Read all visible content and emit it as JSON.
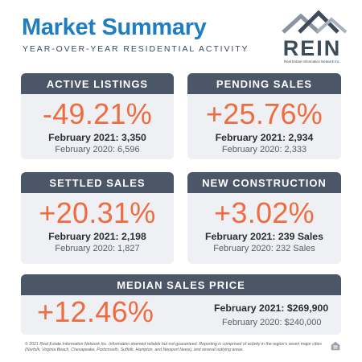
{
  "header": {
    "title": "Market Summary",
    "subtitle": "YEAR-OVER-YEAR RESIDENTIAL ACTIVITY"
  },
  "logo": {
    "text": "REIN",
    "tagline": "Real Estate Information Network Inc.",
    "icon": "house-roofs-icon"
  },
  "cards": {
    "active_listings": {
      "title": "ACTIVE LISTINGS",
      "change": "-49.21%",
      "current": "February 2021: 3,350",
      "previous": "February 2020: 6,596"
    },
    "pending_sales": {
      "title": "PENDING SALES",
      "change": "+25.76%",
      "current": "February 2021: 2,934",
      "previous": "February 2020: 2,333"
    },
    "settled_sales": {
      "title": "SETTLED SALES",
      "change": "+20.31%",
      "current": "February 2021: 2,198",
      "previous": "February 2020: 1,827"
    },
    "new_construction": {
      "title": "NEW CONSTRUCTION",
      "change": "+3.02%",
      "current": "February 2021: 239 Sales",
      "previous": "February 2020: 232 Sales"
    },
    "median_sales_price": {
      "title": "MEDIAN SALES PRICE",
      "change": "+12.46%",
      "current": "February 2021: $269,900",
      "previous": "February 2020: $240,000"
    }
  },
  "footer": {
    "text": "© 2021 Real Estate Information Network Inc. Information deemed reliable but not guaranteed. Reporting is comprised of activity in the region's seven major cities (Norfolk, Virginia Beach, Chesapeake, Portsmouth, Suffolk, Hampton, and Newport News), and several outlying areas.",
    "icon": "equal-housing-opportunity-icon"
  },
  "colors": {
    "title_blue": "#1f7ec0",
    "header_bar": "#4b5666",
    "card_bg": "#eef0f3",
    "accent_orange": "#ef6b40"
  }
}
